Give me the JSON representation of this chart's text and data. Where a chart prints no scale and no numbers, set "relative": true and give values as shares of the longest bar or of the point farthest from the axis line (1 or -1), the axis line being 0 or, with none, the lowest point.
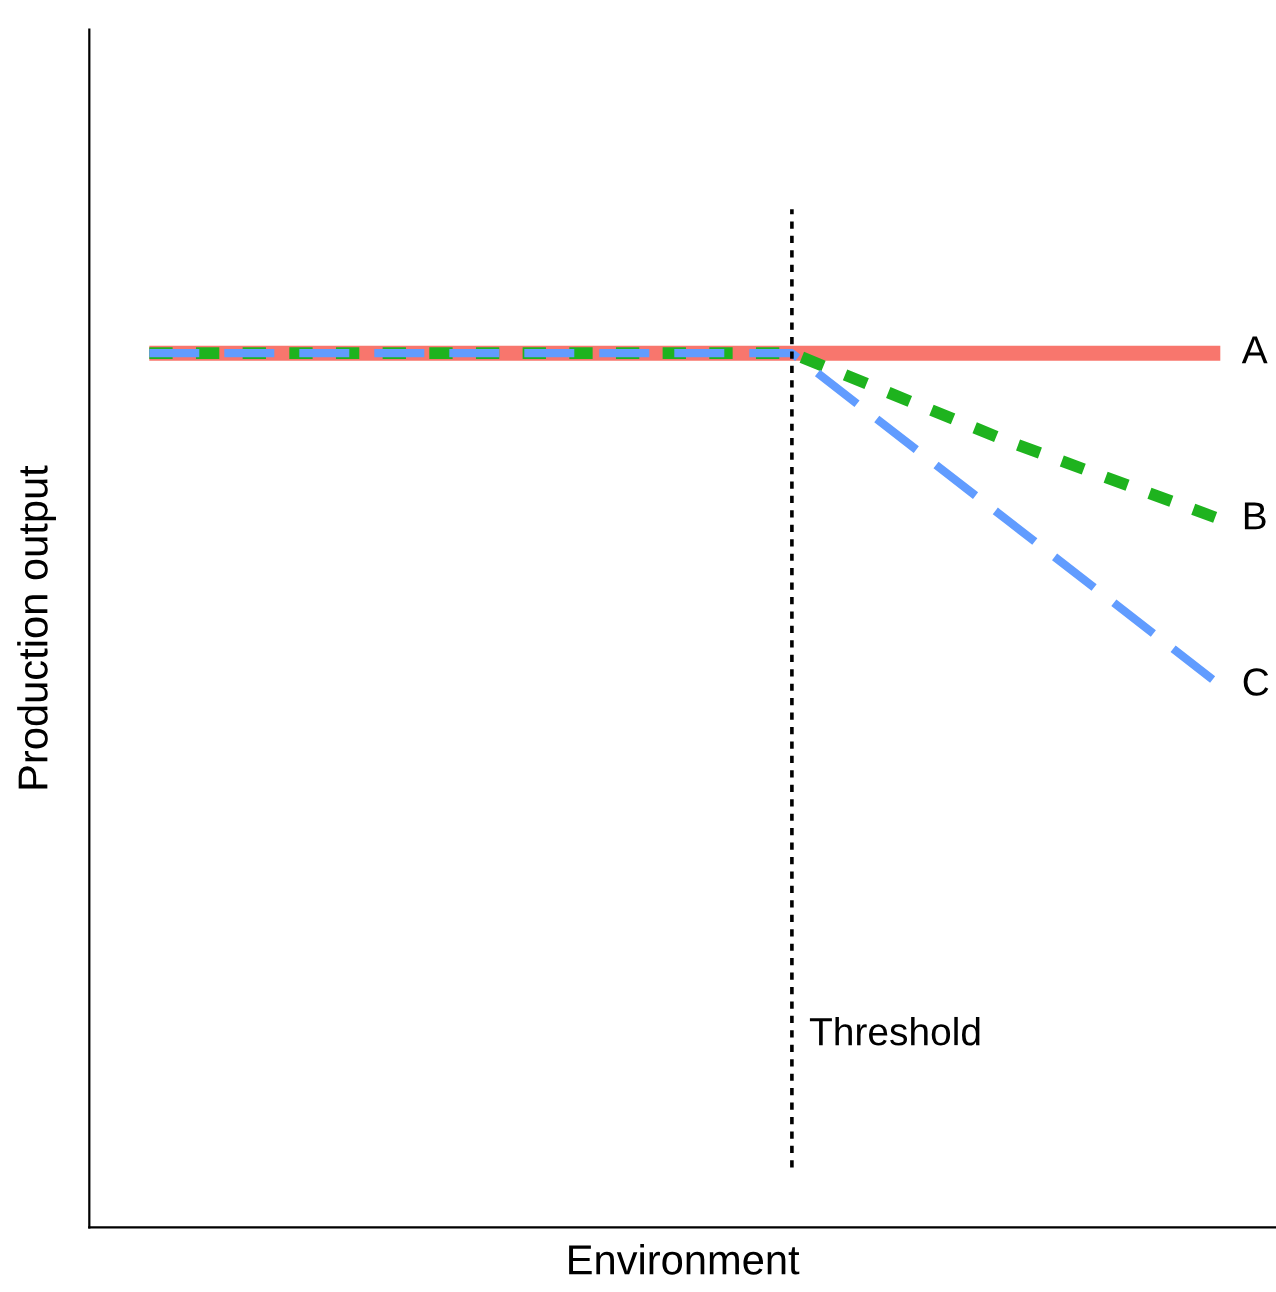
{
  "chart_data": {
    "type": "line",
    "relative": true,
    "xlabel": "Environment",
    "ylabel": "Production output",
    "categories": [
      null,
      null,
      null,
      null,
      null,
      null
    ],
    "series": [
      {
        "name": "A",
        "color": "#f8766d",
        "line_style": "solid",
        "values": [
          1,
          1,
          1,
          1,
          1,
          1
        ]
      },
      {
        "name": "B",
        "color": "#1eb31e",
        "line_style": "dotted",
        "values": [
          1,
          1,
          1,
          1,
          0.9,
          0.81
        ]
      },
      {
        "name": "C",
        "color": "#619cff",
        "line_style": "dashed",
        "values": [
          1,
          1,
          1,
          1,
          0.81,
          0.62
        ]
      }
    ],
    "annotations": [
      "Threshold"
    ],
    "legend": false,
    "tick_labels": false,
    "marker": "none"
  }
}
